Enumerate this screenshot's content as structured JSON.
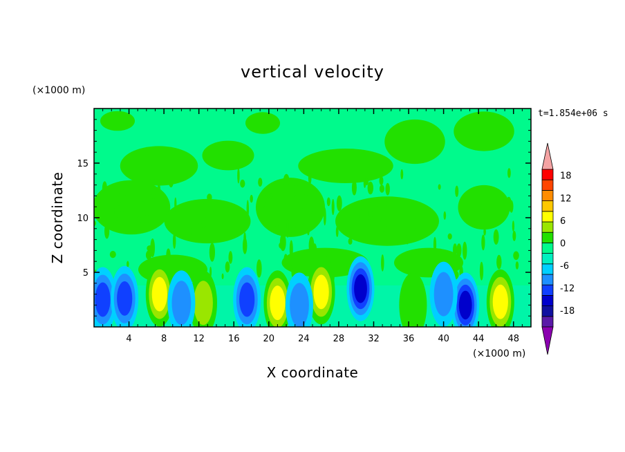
{
  "chart_data": {
    "type": "heatmap",
    "title": "vertical velocity",
    "xlabel": "X coordinate",
    "ylabel": "Z coordinate",
    "x_unit": "(×1000 m)",
    "y_unit": "(×1000 m)",
    "time_label": "t=1.854e+06 s",
    "xlim": [
      0,
      50
    ],
    "ylim": [
      0,
      20
    ],
    "xticks": [
      4,
      8,
      12,
      16,
      20,
      24,
      28,
      32,
      36,
      40,
      44,
      48
    ],
    "yticks": [
      5,
      10,
      15
    ],
    "colorbar": {
      "tick_labels": [
        "18",
        "12",
        "6",
        "0",
        "-6",
        "-12",
        "-18"
      ],
      "tick_values": [
        18,
        12,
        6,
        0,
        -6,
        -12,
        -18
      ],
      "levels": [
        -21,
        -18,
        -15,
        -12,
        -9,
        -6,
        -3,
        0,
        3,
        6,
        9,
        12,
        15,
        18,
        21
      ],
      "colors": [
        "#5a1aa8",
        "#1010a0",
        "#0000cc",
        "#1040ff",
        "#1e90ff",
        "#00d0ff",
        "#00f0c0",
        "#00fa8c",
        "#22e000",
        "#9ae600",
        "#ffff00",
        "#ffc800",
        "#ff8c00",
        "#ff4500",
        "#ff0000"
      ],
      "under_color": "#8b00b0",
      "over_color": "#f4a3a3"
    },
    "features": [
      {
        "x": 7.5,
        "z": 3.0,
        "value": 9
      },
      {
        "x": 12.5,
        "z": 2.2,
        "value": 8
      },
      {
        "x": 21.0,
        "z": 2.2,
        "value": 11
      },
      {
        "x": 26.0,
        "z": 3.2,
        "value": 9
      },
      {
        "x": 46.5,
        "z": 2.3,
        "value": 11
      },
      {
        "x": 36.5,
        "z": 2.0,
        "value": 5
      },
      {
        "x": 1.0,
        "z": 2.5,
        "value": -10
      },
      {
        "x": 3.5,
        "z": 2.6,
        "value": -9
      },
      {
        "x": 10.0,
        "z": 2.2,
        "value": -6
      },
      {
        "x": 17.5,
        "z": 2.5,
        "value": -9
      },
      {
        "x": 23.5,
        "z": 2.0,
        "value": -8
      },
      {
        "x": 30.5,
        "z": 3.5,
        "value": -12
      },
      {
        "x": 42.5,
        "z": 2.0,
        "value": -14
      },
      {
        "x": 40.0,
        "z": 3.0,
        "value": -7
      }
    ]
  }
}
